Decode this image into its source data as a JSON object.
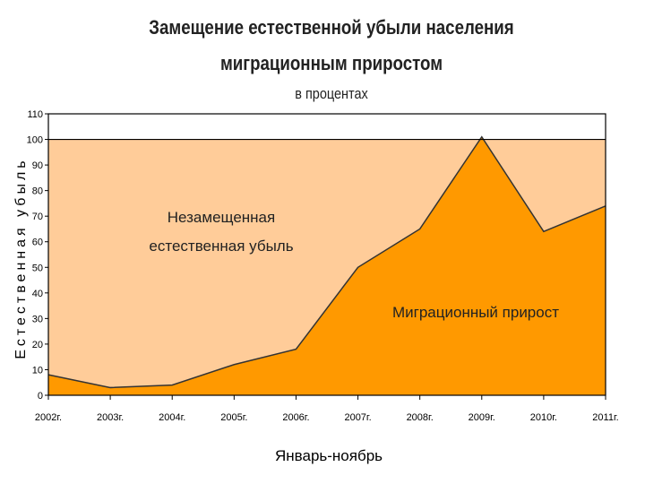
{
  "chart_data": {
    "type": "area",
    "title": "Замещение естественной убыли населения",
    "title_line2": "миграционным приростом",
    "subtitle": "в процентах",
    "xlabel": "Январь-ноябрь",
    "ylabel": "Естественная убыль",
    "categories": [
      "2002г.",
      "2003г.",
      "2004г.",
      "2005г.",
      "2006г.",
      "2007г.",
      "2008г.",
      "2009г.",
      "2010г.",
      "2011г."
    ],
    "series": [
      {
        "name": "Миграционный прирост",
        "values": [
          8,
          3,
          4,
          12,
          18,
          50,
          65,
          101,
          64,
          74
        ]
      }
    ],
    "reference_line": 100,
    "ylim": [
      0,
      110
    ],
    "yticks": [
      0,
      10,
      20,
      30,
      40,
      50,
      60,
      70,
      80,
      90,
      100,
      110
    ],
    "annotations": {
      "unreplaced_line1": "Незамещенная",
      "unreplaced_line2": "естественная убыль",
      "migration": "Миграционный прирост"
    },
    "colors": {
      "migration_fill": "#ff9900",
      "unreplaced_fill": "#ffcc99",
      "line": "#333333"
    }
  }
}
